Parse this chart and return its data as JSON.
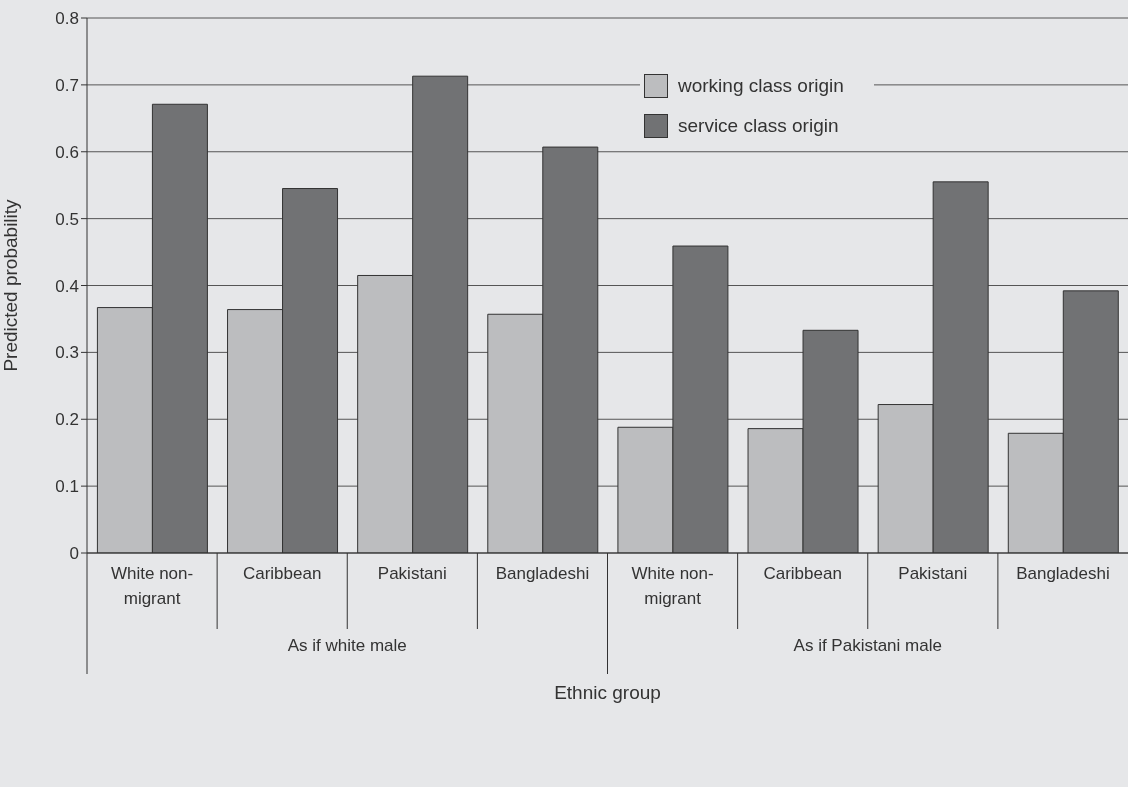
{
  "chart_data": {
    "type": "bar",
    "xlabel": "Ethnic group",
    "ylabel": "Predicted probability",
    "categories": [
      "White non-migrant",
      "Caribbean",
      "Pakistani",
      "Bangladeshi",
      "White non-migrant",
      "Caribbean",
      "Pakistani",
      "Bangladeshi"
    ],
    "series": [
      {
        "name": "working class origin",
        "color": "#bcbdbf",
        "values": [
          0.367,
          0.364,
          0.415,
          0.357,
          0.188,
          0.186,
          0.222,
          0.179
        ]
      },
      {
        "name": "service class origin",
        "color": "#717274",
        "values": [
          0.671,
          0.545,
          0.713,
          0.607,
          0.459,
          0.333,
          0.555,
          0.392
        ]
      }
    ],
    "annotations": [
      "As if white male",
      "As if Pakistani male"
    ],
    "ylim": [
      0,
      0.8
    ],
    "yticks": [
      0,
      0.1,
      0.2,
      0.3,
      0.4,
      0.5,
      0.6,
      0.7,
      0.8
    ],
    "grid": "y",
    "legend": "top"
  }
}
